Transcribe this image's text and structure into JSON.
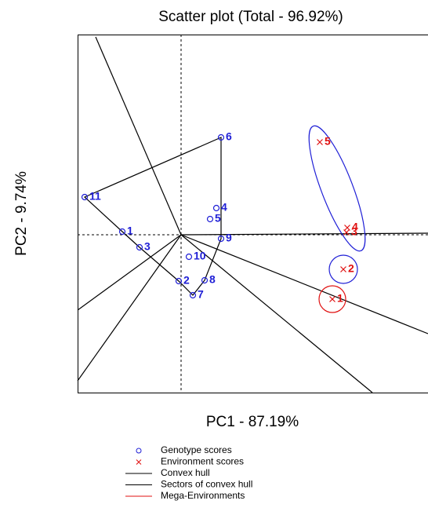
{
  "chart_data": {
    "type": "scatter",
    "title": "Scatter plot (Total - 96.92%)",
    "x_label": "PC1 - 87.19%",
    "y_label": "PC2 - 9.74%",
    "xlim": [
      -13.2,
      31.5
    ],
    "ylim": [
      -20.1,
      25.5
    ],
    "series": [
      {
        "name": "Genotype scores",
        "color": "#1f1fd6",
        "marker": "circle",
        "labels": [
          "1",
          "2",
          "3",
          "4",
          "5",
          "6",
          "7",
          "8",
          "9",
          "10",
          "11"
        ],
        "x": [
          -7.5,
          -0.3,
          -5.3,
          4.5,
          3.7,
          5.1,
          1.5,
          3.0,
          5.1,
          1.0,
          -12.3
        ],
        "values": [
          0.4,
          -5.9,
          -1.6,
          3.4,
          2.0,
          12.4,
          -7.7,
          -5.8,
          -0.5,
          -2.8,
          4.8
        ]
      },
      {
        "name": "Environment scores",
        "color": "#e01010",
        "marker": "x",
        "labels": [
          "1",
          "2",
          "3",
          "4",
          "5"
        ],
        "x": [
          19.3,
          20.7,
          21.1,
          21.2,
          17.7
        ],
        "values": [
          -8.2,
          -4.4,
          0.3,
          0.9,
          11.8
        ]
      }
    ],
    "hull": {
      "name": "Convex hull",
      "color": "#000000",
      "points": [
        10,
        5,
        8,
        7,
        6,
        1,
        2,
        0
      ]
    },
    "sectors": {
      "name": "Sectors of convex hull",
      "color": "#000000",
      "x": [
        -10.9,
        -13.2,
        -13.2,
        24.4,
        31.5,
        31.5
      ],
      "y": [
        25.2,
        -9.6,
        -18.6,
        -20.1,
        -12.6,
        0.2
      ]
    },
    "mega_environments": {
      "name": "Mega-Environments",
      "color": "#e01010",
      "regions": [
        {
          "cx": 19.9,
          "cy": 5.9,
          "rx": 8.5,
          "ry": 2.0,
          "angle": 69,
          "color": "#1f1fd6"
        },
        {
          "cx": 20.7,
          "cy": -4.4,
          "rx": 1.8,
          "ry": 1.8,
          "angle": 0,
          "color": "#1f1fd6"
        },
        {
          "cx": 19.3,
          "cy": -8.2,
          "rx": 1.7,
          "ry": 1.7,
          "angle": 0,
          "color": "#e01010"
        }
      ]
    }
  }
}
